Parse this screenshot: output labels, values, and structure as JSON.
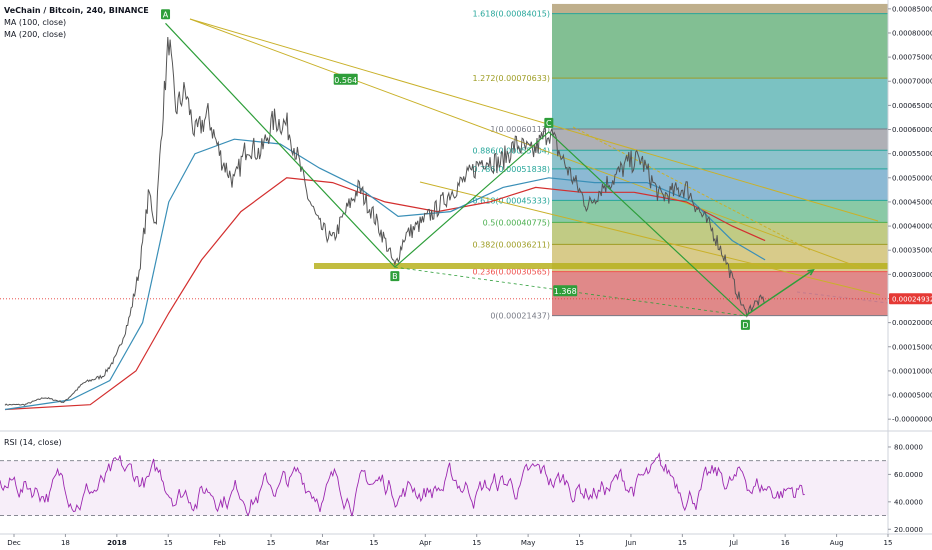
{
  "header": {
    "title": "VeChain / Bitcoin, 240, BINANCE",
    "ma100": "MA (100, close)",
    "ma200": "MA (200, close)",
    "rsi": "RSI (14, close)"
  },
  "colors": {
    "price": "#555555",
    "ma100": "#3a8fb7",
    "ma200": "#d32f2f",
    "pattern": "#2e9e3a",
    "channel": "#c9b12a",
    "rsi": "#9c27b0",
    "rsi_band": "rgba(156,39,176,0.08)",
    "price_tag": "#e53935"
  },
  "chart_data": {
    "type": "line",
    "y_axis": {
      "ticks": [
        "0.00085000",
        "0.00080000",
        "0.00075000",
        "0.00070000",
        "0.00065000",
        "0.00060000",
        "0.00055000",
        "0.00050000",
        "0.00045000",
        "0.00040000",
        "0.00035000",
        "0.00030000",
        "0.00025000",
        "0.00020000",
        "0.00015000",
        "0.00010000",
        "0.00005000",
        "-0.00000000"
      ],
      "ylim": [
        -1e-05,
        0.00086
      ]
    },
    "rsi_axis": {
      "ticks": [
        "80.0000",
        "60.0000",
        "40.0000",
        "20.0000"
      ],
      "ylim": [
        18,
        88
      ],
      "bands": [
        70,
        30
      ]
    },
    "x_axis": {
      "labels": [
        "Dec",
        "18",
        "2018",
        "15",
        "Feb",
        "15",
        "Mar",
        "15",
        "Apr",
        "15",
        "May",
        "15",
        "Jun",
        "15",
        "Jul",
        "16",
        "Aug",
        "15"
      ],
      "range_days": [
        0,
        268
      ]
    },
    "price_tag": "0.00024932",
    "current_price": 0.00024932,
    "fib": [
      {
        "label": "1.618(0.00084015)",
        "value": 0.00084015,
        "color": "#26a69a"
      },
      {
        "label": "1.272(0.00070633)",
        "value": 0.00070633,
        "color": "#9e9d24"
      },
      {
        "label": "1(0.00060113)",
        "value": 0.00060113,
        "color": "#787b86"
      },
      {
        "label": "0.886(0.00055704)",
        "value": 0.00055704,
        "color": "#26a69a"
      },
      {
        "label": "0.786(0.00051838)",
        "value": 0.00051838,
        "color": "#26a69a"
      },
      {
        "label": "0.618(0.00045333)",
        "value": 0.00045333,
        "color": "#26a69a"
      },
      {
        "label": "0.5(0.00040775)",
        "value": 0.00040775,
        "color": "#4caf50"
      },
      {
        "label": "0.382(0.00036211)",
        "value": 0.00036211,
        "color": "#9e9d24"
      },
      {
        "label": "0.236(0.00030565)",
        "value": 0.00030565,
        "color": "#ef5350"
      },
      {
        "label": "0(0.00021437)",
        "value": 0.00021437,
        "color": "#787b86"
      }
    ],
    "pattern_points": [
      {
        "label": "A",
        "day": 49,
        "value": 0.00082
      },
      {
        "label": "B",
        "day": 119,
        "value": 0.000315
      },
      {
        "label": "C",
        "day": 166,
        "value": 0.000595
      },
      {
        "label": "D",
        "day": 226,
        "value": 0.000214
      }
    ],
    "ratios": [
      {
        "label": "0.564",
        "day": 104,
        "value": 0.000703
      },
      {
        "label": "1.368",
        "day": 171,
        "value": 0.000265
      }
    ],
    "price_points": [
      [
        0,
        3e-05
      ],
      [
        6,
        3e-05
      ],
      [
        12,
        4.5e-05
      ],
      [
        18,
        3.5e-05
      ],
      [
        24,
        7.5e-05
      ],
      [
        30,
        9e-05
      ],
      [
        34,
        0.00013
      ],
      [
        38,
        0.00021
      ],
      [
        41,
        0.00031
      ],
      [
        44,
        0.00047
      ],
      [
        46,
        0.0004
      ],
      [
        48,
        0.00062
      ],
      [
        50,
        0.00079
      ],
      [
        52,
        0.00064
      ],
      [
        55,
        0.00068
      ],
      [
        58,
        0.00059
      ],
      [
        62,
        0.00063
      ],
      [
        66,
        0.00054
      ],
      [
        70,
        0.00049
      ],
      [
        74,
        0.00057
      ],
      [
        78,
        0.00055
      ],
      [
        82,
        0.00062
      ],
      [
        86,
        0.00061
      ],
      [
        89,
        0.00055
      ],
      [
        92,
        0.00047
      ],
      [
        96,
        0.0004
      ],
      [
        100,
        0.00037
      ],
      [
        104,
        0.00043
      ],
      [
        108,
        0.00048
      ],
      [
        112,
        0.00043
      ],
      [
        116,
        0.00037
      ],
      [
        119,
        0.000315
      ],
      [
        122,
        0.00038
      ],
      [
        126,
        0.0004
      ],
      [
        131,
        0.00043
      ],
      [
        136,
        0.00047
      ],
      [
        141,
        0.0005
      ],
      [
        146,
        0.00054
      ],
      [
        151,
        0.00053
      ],
      [
        156,
        0.00057
      ],
      [
        161,
        0.00055
      ],
      [
        166,
        0.0006
      ],
      [
        170,
        0.00054
      ],
      [
        174,
        0.00049
      ],
      [
        178,
        0.00044
      ],
      [
        182,
        0.00048
      ],
      [
        186,
        0.0005
      ],
      [
        190,
        0.00053
      ],
      [
        194,
        0.00054
      ],
      [
        197,
        0.0005
      ],
      [
        200,
        0.00046
      ],
      [
        204,
        0.00047
      ],
      [
        208,
        0.00048
      ],
      [
        212,
        0.00043
      ],
      [
        216,
        0.00039
      ],
      [
        220,
        0.00033
      ],
      [
        223,
        0.00027
      ],
      [
        226,
        0.00022
      ],
      [
        229,
        0.00024
      ],
      [
        232,
        0.00025
      ]
    ],
    "ma100_points": [
      [
        0,
        2e-05
      ],
      [
        20,
        4e-05
      ],
      [
        32,
        8e-05
      ],
      [
        42,
        0.0002
      ],
      [
        50,
        0.00045
      ],
      [
        58,
        0.00055
      ],
      [
        70,
        0.00058
      ],
      [
        84,
        0.00057
      ],
      [
        96,
        0.00052
      ],
      [
        108,
        0.00048
      ],
      [
        120,
        0.00042
      ],
      [
        136,
        0.00043
      ],
      [
        152,
        0.00048
      ],
      [
        166,
        0.0005
      ],
      [
        180,
        0.00049
      ],
      [
        196,
        0.00049
      ],
      [
        210,
        0.00045
      ],
      [
        222,
        0.00037
      ],
      [
        232,
        0.00033
      ]
    ],
    "ma200_points": [
      [
        0,
        2e-05
      ],
      [
        26,
        3e-05
      ],
      [
        40,
        0.0001
      ],
      [
        50,
        0.00022
      ],
      [
        60,
        0.00033
      ],
      [
        72,
        0.00043
      ],
      [
        86,
        0.0005
      ],
      [
        100,
        0.00049
      ],
      [
        116,
        0.00045
      ],
      [
        132,
        0.00043
      ],
      [
        148,
        0.00045
      ],
      [
        162,
        0.00048
      ],
      [
        176,
        0.00047
      ],
      [
        192,
        0.00047
      ],
      [
        208,
        0.00045
      ],
      [
        222,
        0.0004
      ],
      [
        232,
        0.00037
      ]
    ]
  }
}
